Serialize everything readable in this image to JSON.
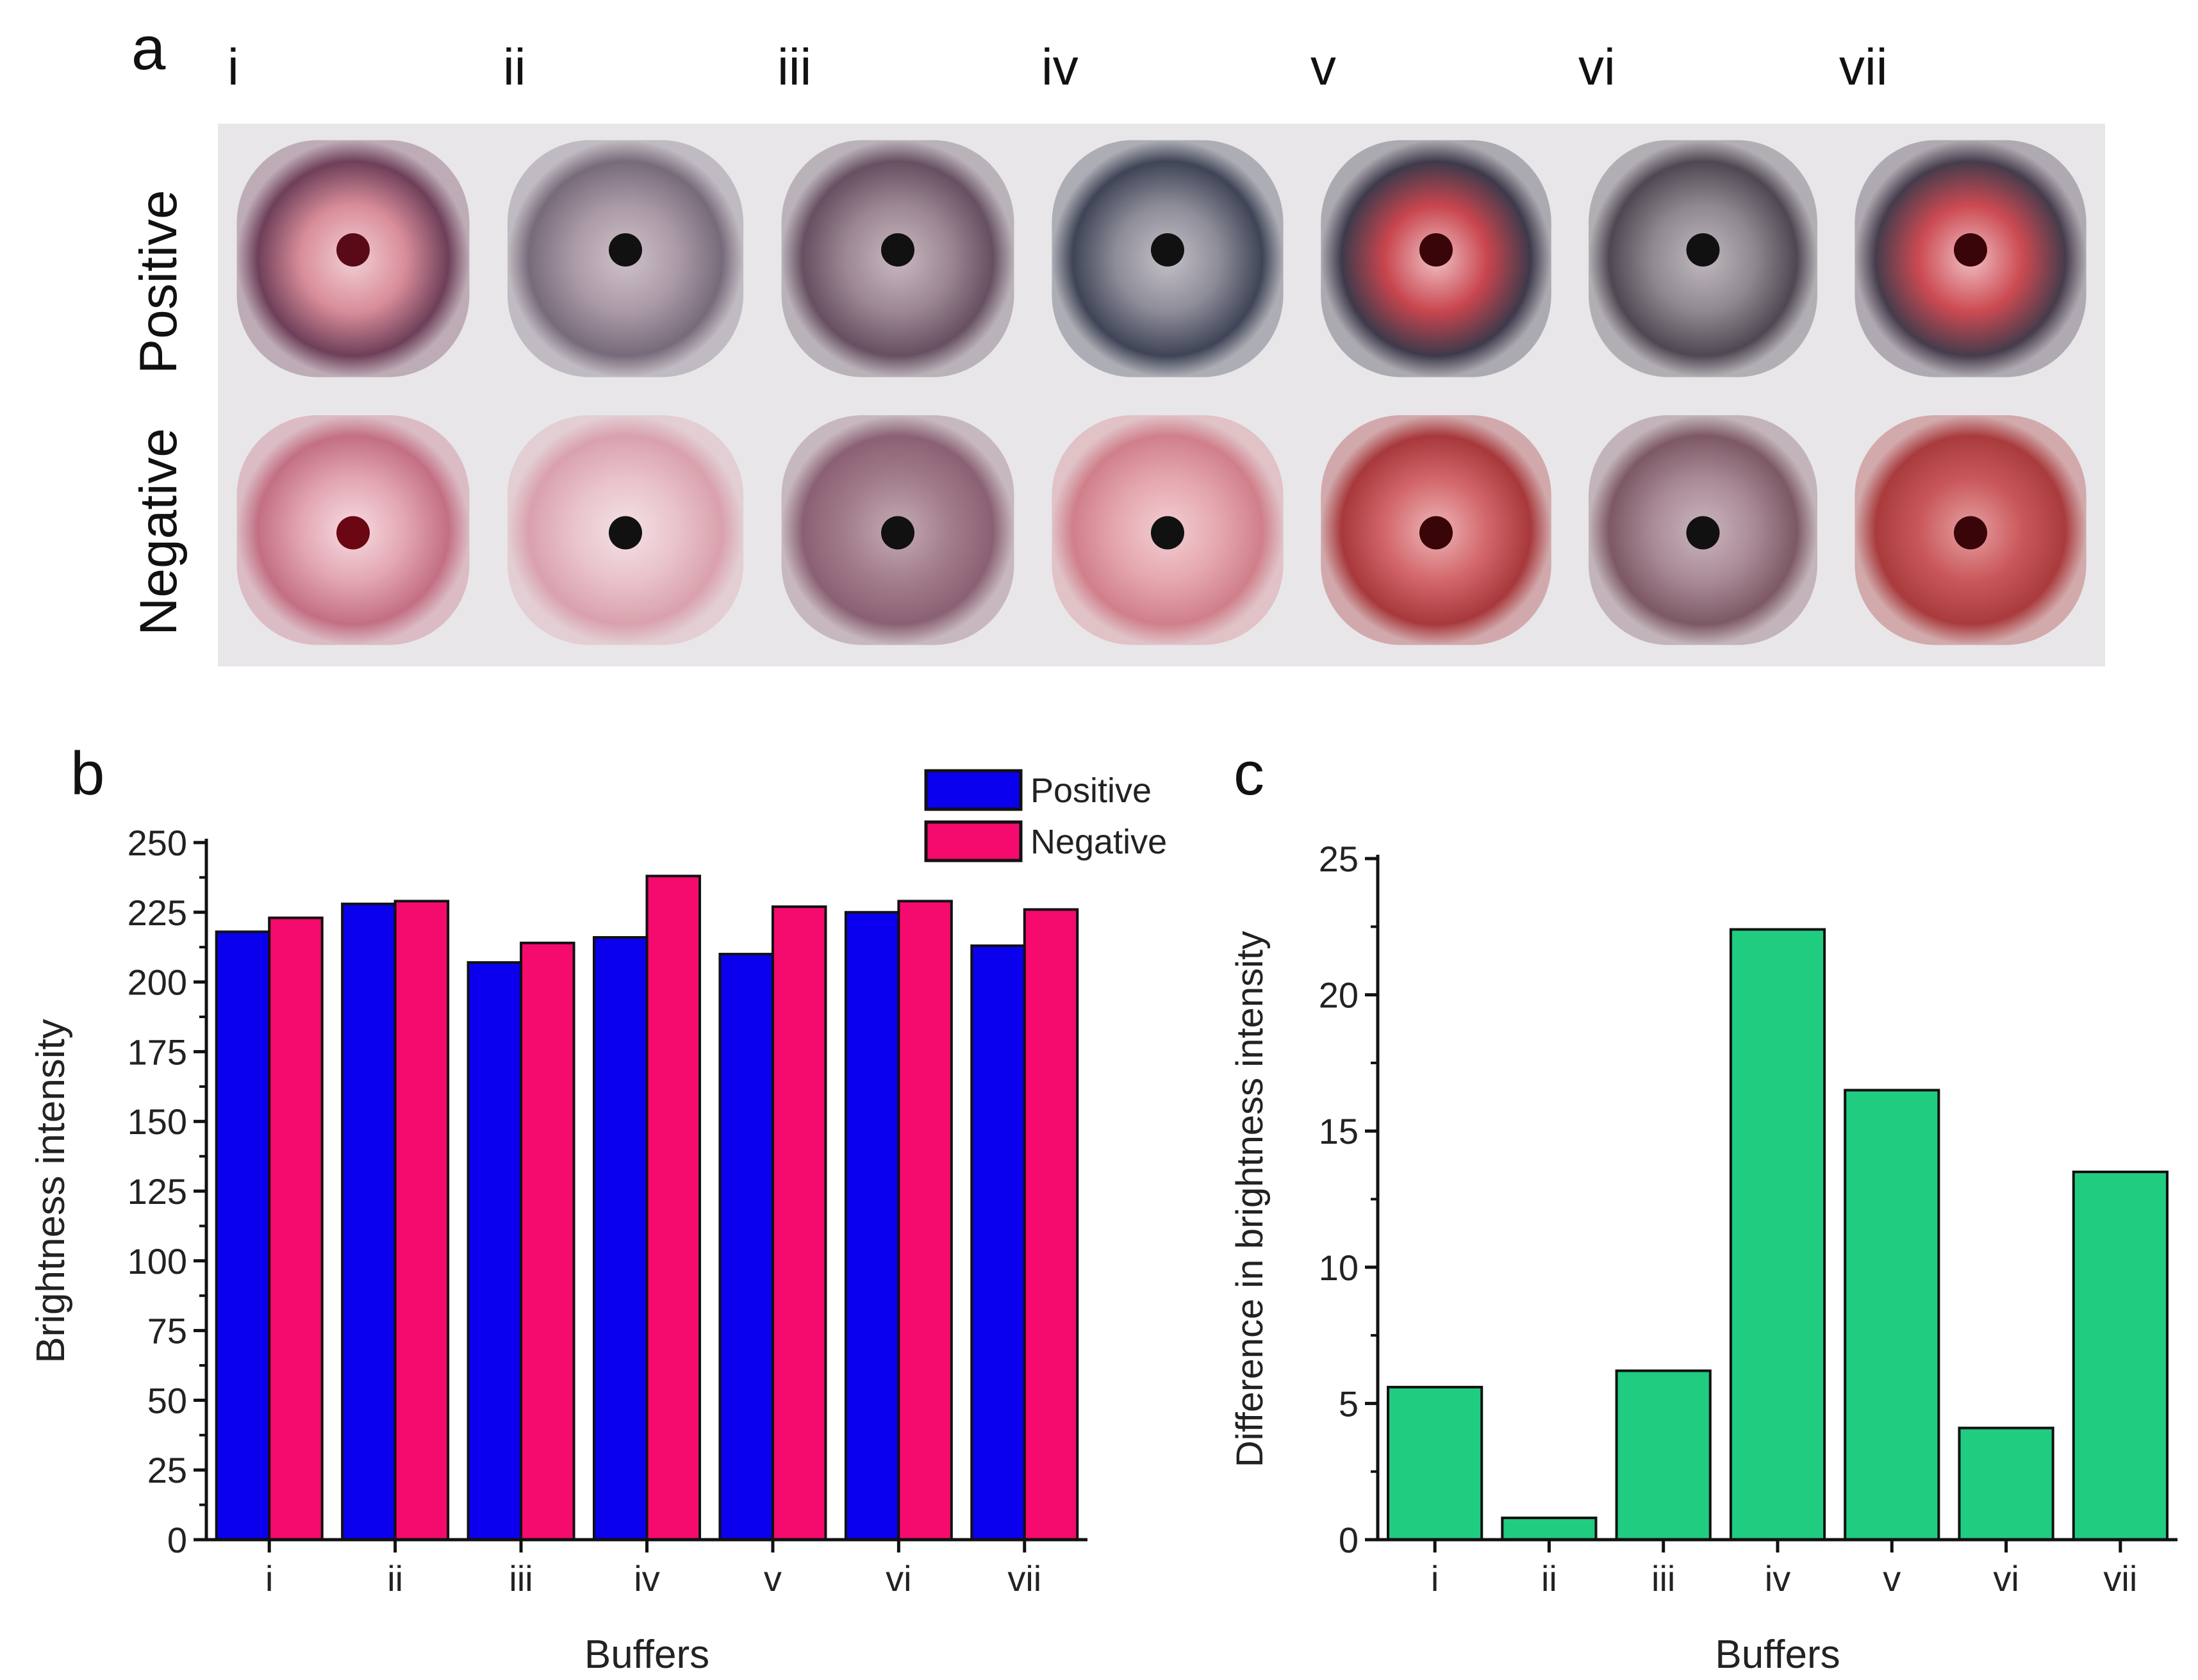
{
  "panel_a": {
    "label": "a",
    "row_labels": [
      "Positive",
      "Negative"
    ],
    "column_labels": [
      "i",
      "ii",
      "iii",
      "iv",
      "v",
      "vi",
      "vii"
    ],
    "samples": {
      "positive": [
        {
          "ring": "#6e3f59",
          "inner": "#d98d9a",
          "core": "#f2d0d5",
          "dot": "#5a0a16"
        },
        {
          "ring": "#776a7a",
          "inner": "#aa9aa6",
          "core": "#cfc1c9",
          "dot": "#111111"
        },
        {
          "ring": "#665061",
          "inner": "#9c8793",
          "core": "#c8b8c1",
          "dot": "#111111"
        },
        {
          "ring": "#3f4456",
          "inner": "#8d8c98",
          "core": "#c6c1c8",
          "dot": "#111111"
        },
        {
          "ring": "#3e3a4b",
          "inner": "#c8454e",
          "core": "#f1c2c6",
          "dot": "#3a0508"
        },
        {
          "ring": "#4f4852",
          "inner": "#908890",
          "core": "#c1b9bf",
          "dot": "#111111"
        },
        {
          "ring": "#463c4c",
          "inner": "#cc4a52",
          "core": "#f0c0c4",
          "dot": "#3a0508"
        }
      ],
      "negative": [
        {
          "ring": "#c36f83",
          "inner": "#e3a6b3",
          "core": "#f6dde2",
          "dot": "#6a0712"
        },
        {
          "ring": "#d9a1ad",
          "inner": "#e9c2ca",
          "core": "#f4e2e6",
          "dot": "#111111"
        },
        {
          "ring": "#8a6173",
          "inner": "#a37d8c",
          "core": "#c5abb6",
          "dot": "#111111"
        },
        {
          "ring": "#d07f8a",
          "inner": "#e5a7ae",
          "core": "#f2cfd3",
          "dot": "#111111"
        },
        {
          "ring": "#a7383b",
          "inner": "#d2666a",
          "core": "#eeb7b9",
          "dot": "#3a0508"
        },
        {
          "ring": "#7d5865",
          "inner": "#a88a96",
          "core": "#cbb6bf",
          "dot": "#111111"
        },
        {
          "ring": "#a93b3d",
          "inner": "#c9575a",
          "core": "#e6a1a3",
          "dot": "#3a0508"
        }
      ]
    }
  },
  "chart_data": [
    {
      "panel": "b",
      "type": "bar",
      "categories": [
        "i",
        "ii",
        "iii",
        "iv",
        "v",
        "vi",
        "vii"
      ],
      "series": [
        {
          "name": "Positive",
          "color": "#0a00ee",
          "values": [
            218,
            228,
            207,
            216,
            210,
            225,
            213
          ]
        },
        {
          "name": "Negative",
          "color": "#f50a6d",
          "values": [
            223,
            229,
            214,
            238,
            227,
            229,
            226
          ]
        }
      ],
      "title": "",
      "xlabel": "Buffers",
      "ylabel": "Brightness intensity",
      "ylim": [
        0,
        250
      ],
      "yticks": [
        0,
        25,
        50,
        75,
        100,
        125,
        150,
        175,
        200,
        225,
        250
      ],
      "legend": "top-right",
      "grid": false
    },
    {
      "panel": "c",
      "type": "bar",
      "categories": [
        "i",
        "ii",
        "iii",
        "iv",
        "v",
        "vi",
        "vii"
      ],
      "series": [
        {
          "name": "Difference",
          "color": "#20cc80",
          "values": [
            5.6,
            0.8,
            6.2,
            22.4,
            16.5,
            4.1,
            13.5
          ]
        }
      ],
      "title": "",
      "xlabel": "Buffers",
      "ylabel": "Difference in brightness intensity",
      "ylim": [
        0,
        25
      ],
      "yticks": [
        0,
        5,
        10,
        15,
        20,
        25
      ],
      "legend": "none",
      "grid": false
    }
  ]
}
